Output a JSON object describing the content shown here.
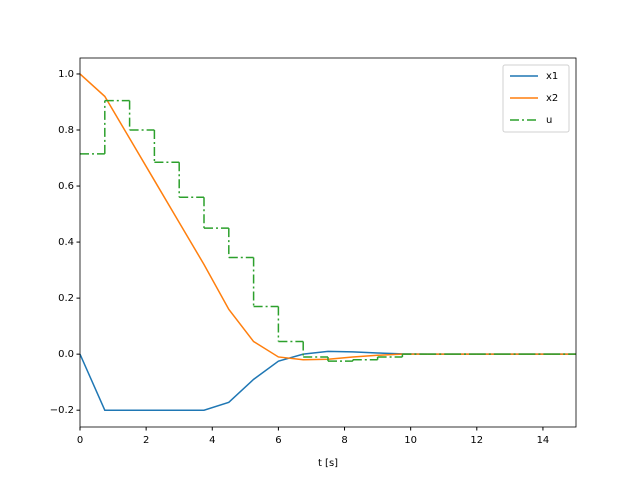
{
  "chart_data": {
    "type": "line",
    "x_label": "t [s]",
    "x": [
      0,
      0.75,
      1.5,
      2.25,
      3,
      3.75,
      4.5,
      5.25,
      6,
      6.75,
      7.5,
      8.25,
      9,
      9.75,
      10.5,
      11.25,
      12,
      12.75,
      13.5,
      14.25,
      15
    ],
    "series": [
      {
        "name": "x1",
        "color": "#1f77b4",
        "values": [
          0,
          -0.2,
          -0.2,
          -0.2,
          -0.2,
          -0.2,
          -0.172,
          -0.09,
          -0.025,
          0.0,
          0.01,
          0.008,
          0.004,
          0.001,
          0,
          0,
          0,
          0,
          0,
          0,
          0
        ]
      },
      {
        "name": "x2",
        "color": "#ff7f0e",
        "values": [
          1.0,
          0.92,
          0.77,
          0.62,
          0.47,
          0.32,
          0.16,
          0.045,
          -0.01,
          -0.02,
          -0.018,
          -0.01,
          -0.004,
          0,
          0,
          0,
          0,
          0,
          0,
          0,
          0
        ]
      },
      {
        "name": "u",
        "color": "#2ca02c",
        "drawstyle": "steps-post",
        "linestyle": "dashdot",
        "values": [
          0.715,
          0.905,
          0.8,
          0.685,
          0.56,
          0.45,
          0.345,
          0.17,
          0.045,
          -0.01,
          -0.025,
          -0.02,
          -0.01,
          0,
          0,
          0,
          0,
          0,
          0,
          0,
          0
        ]
      }
    ],
    "xlim": [
      0,
      15
    ],
    "ylim": [
      -0.26,
      1.057
    ],
    "xticks": [
      0,
      2,
      4,
      6,
      8,
      10,
      12,
      14
    ],
    "yticks": [
      {
        "value": -0.2,
        "label": "−0.2"
      },
      {
        "value": 0,
        "label": "0.0"
      },
      {
        "value": 0.2,
        "label": "0.2"
      },
      {
        "value": 0.4,
        "label": "0.4"
      },
      {
        "value": 0.6,
        "label": "0.6"
      },
      {
        "value": 0.8,
        "label": "0.8"
      },
      {
        "value": 1.0,
        "label": "1.0"
      }
    ],
    "legend": "upper right",
    "grid": false
  }
}
